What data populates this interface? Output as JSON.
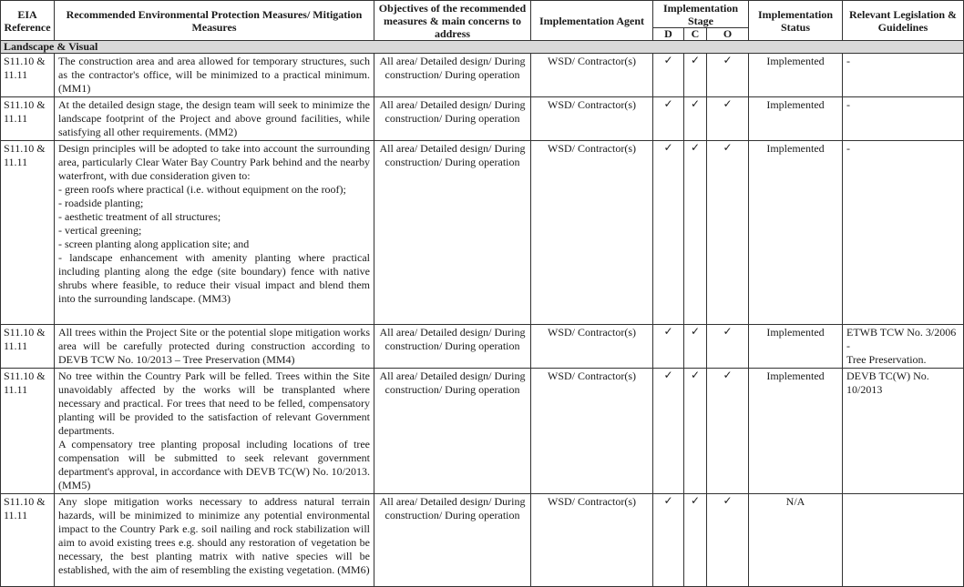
{
  "headers": {
    "eia_reference": "EIA Reference",
    "measures": "Recommended Environmental Protection Measures/ Mitigation Measures",
    "objectives": "Objectives of the recommended measures & main concerns to address",
    "agent": "Implementation Agent",
    "stage": "Implementation Stage",
    "stage_d": "D",
    "stage_c": "C",
    "stage_o": "O",
    "status": "Implementation Status",
    "legislation": "Relevant Legislation & Guidelines"
  },
  "section": "Landscape & Visual",
  "check_symbol": "✓",
  "rows": [
    {
      "ref": "S11.10 & 11.11",
      "measures": [
        "The construction area and area allowed for temporary structures, such as the contractor's office, will be minimized to a practical minimum. (MM1)"
      ],
      "objectives": "All area/ Detailed design/ During construction/ During operation",
      "agent": "WSD/ Contractor(s)",
      "status": "Implemented",
      "legislation": [
        "-"
      ]
    },
    {
      "ref": "S11.10 & 11.11",
      "measures": [
        "At the detailed design stage, the design team will seek to minimize the landscape footprint of the Project and above ground facilities, while satisfying all other requirements. (MM2)"
      ],
      "objectives": "All area/ Detailed design/ During construction/ During operation",
      "agent": "WSD/ Contractor(s)",
      "status": "Implemented",
      "legislation": [
        "-"
      ]
    },
    {
      "ref": "S11.10 & 11.11",
      "measures": [
        "Design principles will be adopted to take into account the surrounding area, particularly Clear Water Bay Country Park behind and the nearby waterfront, with due consideration given to:",
        "- green roofs where practical (i.e. without equipment on the roof);",
        "- roadside planting;",
        "- aesthetic treatment of all structures;",
        "- vertical greening;",
        "- screen planting along application site; and",
        "- landscape enhancement with amenity planting where practical including planting along the edge (site boundary) fence with native shrubs where feasible, to reduce their visual impact and blend them into the surrounding landscape. (MM3)"
      ],
      "objectives": "All area/ Detailed design/ During construction/ During operation",
      "agent": "WSD/ Contractor(s)",
      "status": "Implemented",
      "legislation": [
        "-"
      ]
    },
    {
      "ref": "S11.10 & 11.11",
      "measures": [
        "All trees within the Project Site or the potential slope mitigation works area will be carefully protected during construction according to DEVB TCW No. 10/2013 – Tree Preservation (MM4)"
      ],
      "objectives": "All area/ Detailed design/ During construction/ During operation",
      "agent": "WSD/ Contractor(s)",
      "status": "Implemented",
      "legislation": [
        "ETWB TCW No. 3/2006",
        "-",
        "Tree Preservation."
      ]
    },
    {
      "ref": "S11.10 & 11.11",
      "measures": [
        "No tree within the Country Park will be felled. Trees within the Site unavoidably affected by the works will be transplanted where necessary and practical. For trees that need to be felled, compensatory planting will be provided to the satisfaction of relevant Government departments.",
        "A compensatory tree planting proposal including locations of tree compensation will be submitted to seek relevant government department's approval, in accordance with DEVB TC(W) No. 10/2013. (MM5)"
      ],
      "objectives": "All area/ Detailed design/ During construction/ During operation",
      "agent": "WSD/ Contractor(s)",
      "status": "Implemented",
      "legislation": [
        "DEVB TC(W) No. 10/2013"
      ]
    },
    {
      "ref": "S11.10 & 11.11",
      "measures": [
        "Any slope mitigation works necessary to address natural terrain hazards, will be minimized to minimize any potential environmental impact to the Country Park e.g. soil nailing and rock stabilization will aim to avoid existing trees e.g. should any restoration of vegetation be necessary, the best planting matrix with native species will be established, with the aim of resembling the existing vegetation. (MM6)"
      ],
      "objectives": "All area/ Detailed design/ During construction/ During operation",
      "agent": "WSD/ Contractor(s)",
      "status": "N/A",
      "legislation": [
        ""
      ]
    }
  ]
}
